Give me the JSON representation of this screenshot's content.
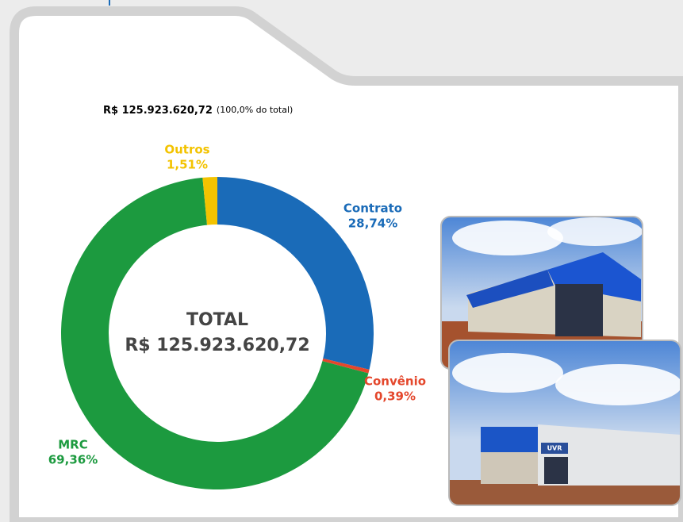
{
  "chart_data": {
    "type": "pie",
    "title": "R$ 125.923.620,72",
    "subtitle": "(100,0% do total)",
    "center_label": "TOTAL",
    "center_value": "R$ 125.923.620,72",
    "categories": [
      "Contrato",
      "Convênio",
      "MRC",
      "Outros"
    ],
    "values": [
      28.74,
      0.39,
      69.36,
      1.51
    ],
    "value_labels": [
      "28,74%",
      "0,39%",
      "69,36%",
      "1,51%"
    ],
    "colors": [
      "#1a6bb8",
      "#e4472c",
      "#1c9a3f",
      "#f3c300"
    ],
    "photo_sign": "UVR"
  }
}
